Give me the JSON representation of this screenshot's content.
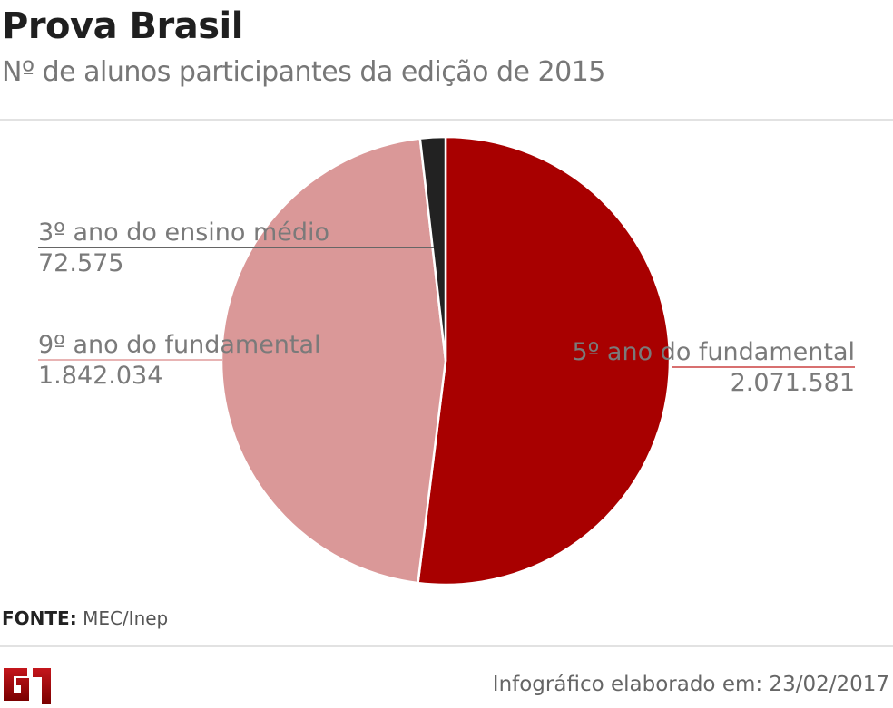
{
  "title": "Prova Brasil",
  "subtitle": "Nº de alunos participantes da edição de 2015",
  "chart_data": {
    "type": "pie",
    "title": "Prova Brasil",
    "subtitle": "Nº de alunos participantes da edição de 2015",
    "slices": [
      {
        "label": "5º ano do fundamental",
        "value": 2071581,
        "value_text": "2.071.581",
        "color": "#a80000"
      },
      {
        "label": "9º ano do fundamental",
        "value": 1842034,
        "value_text": "1.842.034",
        "color": "#da9898"
      },
      {
        "label": "3º ano do ensino médio",
        "value": 72575,
        "value_text": "72.575",
        "color": "#222222"
      }
    ],
    "start": "top",
    "direction": "clockwise"
  },
  "source_label": "FONTE:",
  "source": "MEC/Inep",
  "logo": "G1",
  "footer": "Infográfico elaborado em: 23/02/2017"
}
